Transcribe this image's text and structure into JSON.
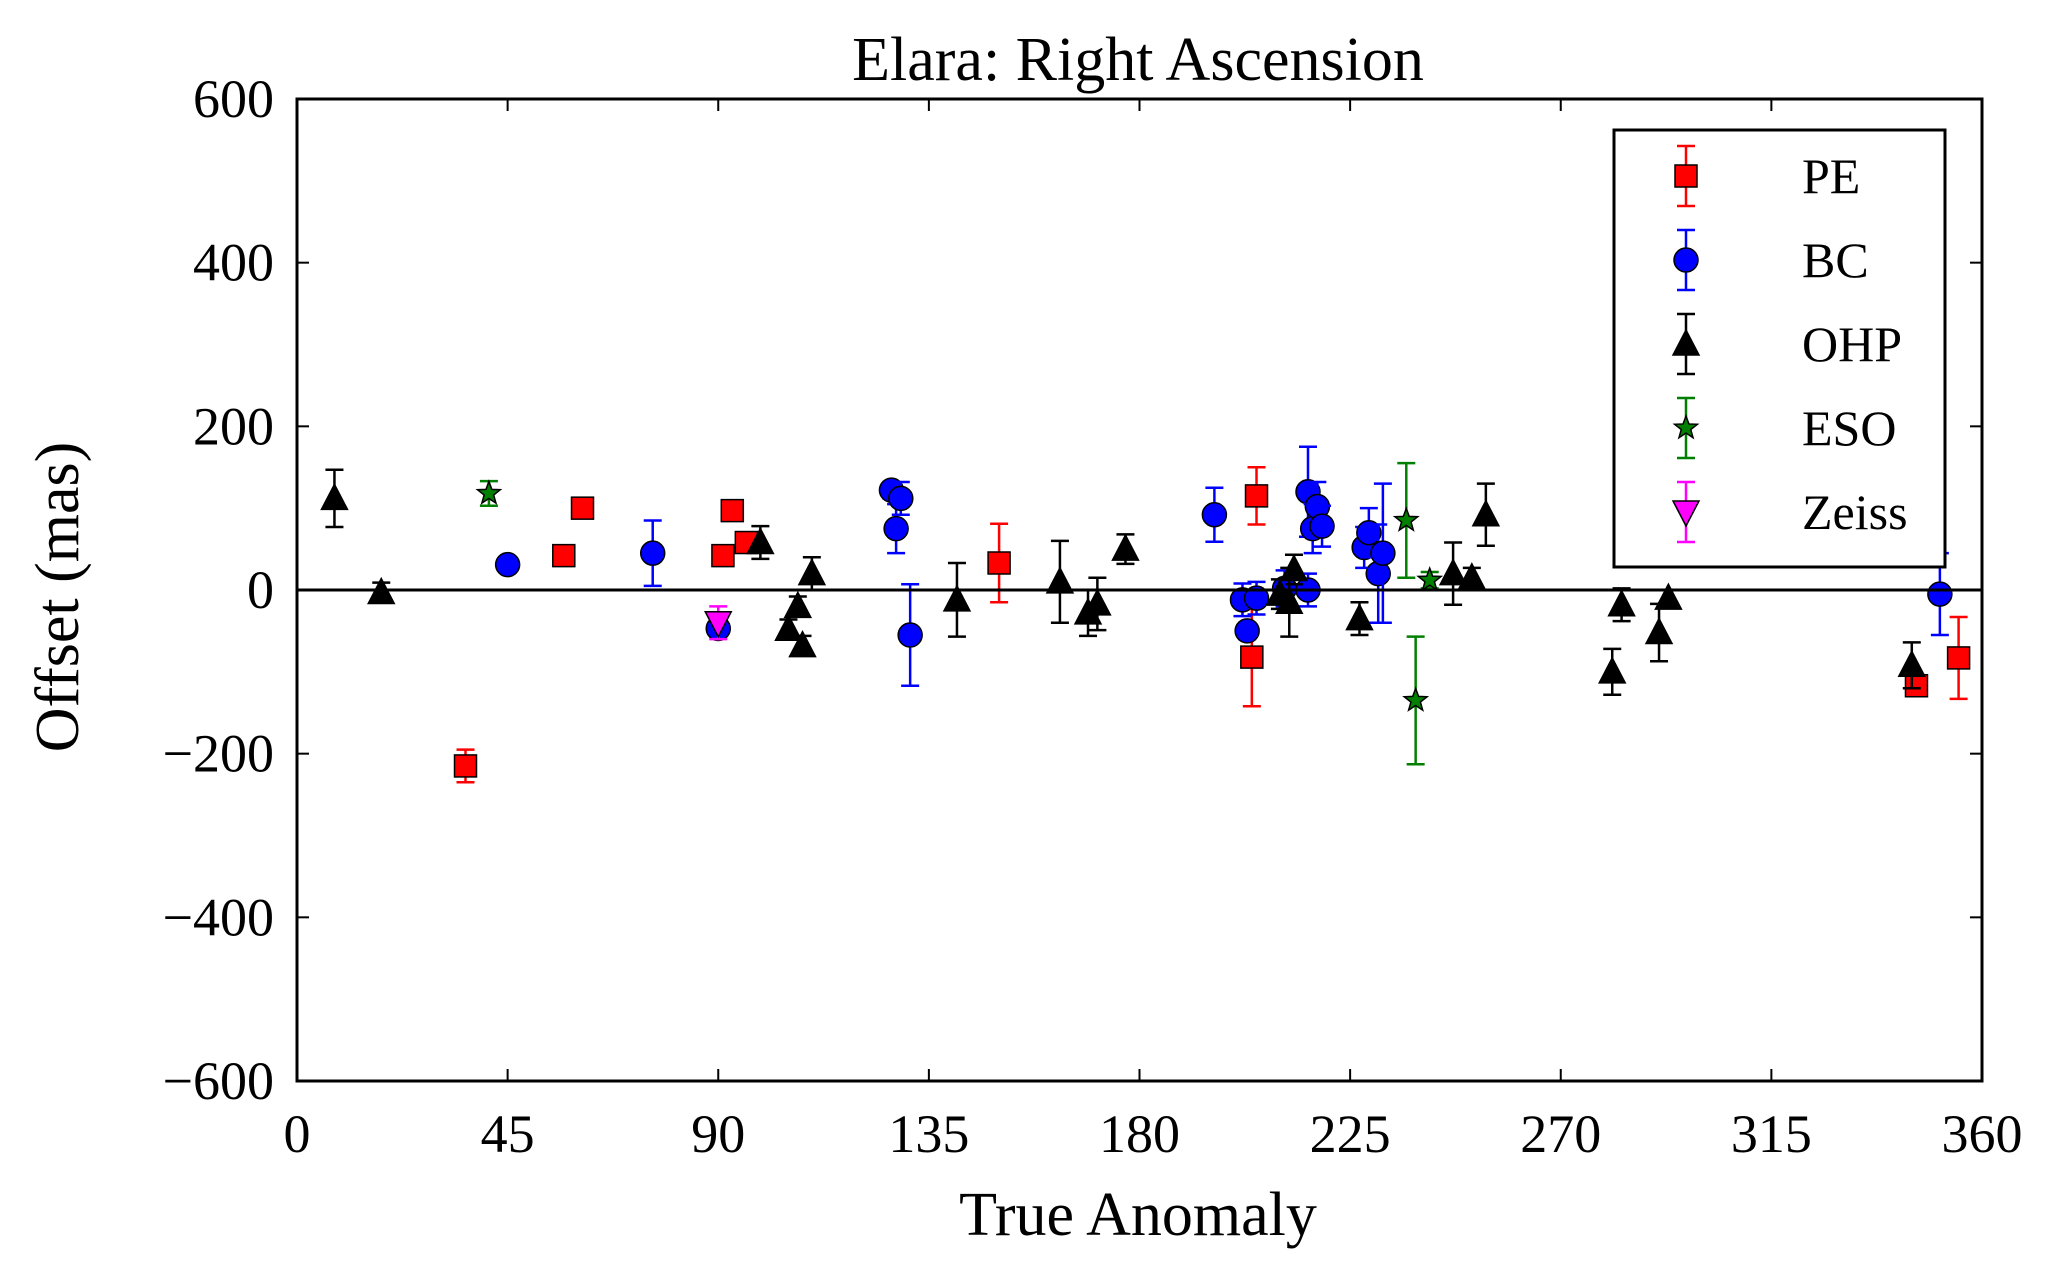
{
  "chart_data": {
    "type": "scatter",
    "title": "Elara: Right Ascension",
    "xlabel": "True Anomaly",
    "ylabel": "Offset (mas)",
    "xlim": [
      0,
      360
    ],
    "ylim": [
      -600,
      600
    ],
    "xticks": [
      0,
      45,
      90,
      135,
      180,
      225,
      270,
      315,
      360
    ],
    "yticks": [
      600,
      400,
      200,
      0,
      -200,
      -400,
      -600
    ],
    "xtick_labels": [
      "0",
      "45",
      "90",
      "135",
      "180",
      "225",
      "270",
      "315",
      "360"
    ],
    "ytick_labels": [
      "600",
      "400",
      "200",
      "0",
      "−200",
      "−400",
      "−600"
    ],
    "zero_line": 0,
    "grid": false,
    "legend_position": "top-right",
    "series": [
      {
        "name": "PE",
        "marker": "square",
        "color": "#ff0000",
        "errcolor": "#ff0000",
        "points": [
          {
            "x": 36,
            "y": -215,
            "err": 20
          },
          {
            "x": 57,
            "y": 42,
            "err": 5
          },
          {
            "x": 61,
            "y": 100,
            "err": 5
          },
          {
            "x": 91,
            "y": 42,
            "err": 5
          },
          {
            "x": 93,
            "y": 97,
            "err": 5
          },
          {
            "x": 96,
            "y": 58,
            "err": 5
          },
          {
            "x": 150,
            "y": 33,
            "err": 48
          },
          {
            "x": 204,
            "y": -82,
            "err": 60
          },
          {
            "x": 205,
            "y": 115,
            "err": 35
          },
          {
            "x": 346,
            "y": -117,
            "err": 8
          },
          {
            "x": 355,
            "y": -83,
            "err": 50
          }
        ]
      },
      {
        "name": "BC",
        "marker": "circle",
        "color": "#0000ff",
        "errcolor": "#0000ff",
        "points": [
          {
            "x": 45,
            "y": 31,
            "err": 8
          },
          {
            "x": 76,
            "y": 45,
            "err": 40
          },
          {
            "x": 90,
            "y": -47,
            "err": 10
          },
          {
            "x": 127,
            "y": 122,
            "err": 10
          },
          {
            "x": 128,
            "y": 75,
            "err": 30
          },
          {
            "x": 129,
            "y": 112,
            "err": 20
          },
          {
            "x": 131,
            "y": -55,
            "err": 62
          },
          {
            "x": 196,
            "y": 92,
            "err": 33
          },
          {
            "x": 202,
            "y": -12,
            "err": 20
          },
          {
            "x": 203,
            "y": -50,
            "err": 10
          },
          {
            "x": 205,
            "y": -10,
            "err": 20
          },
          {
            "x": 211,
            "y": 2,
            "err": 22
          },
          {
            "x": 216,
            "y": 120,
            "err": 55
          },
          {
            "x": 216,
            "y": 0,
            "err": 20
          },
          {
            "x": 217,
            "y": 75,
            "err": 30
          },
          {
            "x": 218,
            "y": 102,
            "err": 30
          },
          {
            "x": 219,
            "y": 78,
            "err": 25
          },
          {
            "x": 228,
            "y": 52,
            "err": 25
          },
          {
            "x": 229,
            "y": 70,
            "err": 30
          },
          {
            "x": 231,
            "y": 20,
            "err": 60
          },
          {
            "x": 232,
            "y": 45,
            "err": 85
          },
          {
            "x": 351,
            "y": -5,
            "err": 50
          }
        ]
      },
      {
        "name": "OHP",
        "marker": "triangle",
        "color": "#000000",
        "errcolor": "#000000",
        "points": [
          {
            "x": 8,
            "y": 112,
            "err": 35
          },
          {
            "x": 18,
            "y": -3,
            "err": 12
          },
          {
            "x": 99,
            "y": 58,
            "err": 20
          },
          {
            "x": 105,
            "y": -48,
            "err": 12
          },
          {
            "x": 107,
            "y": -20,
            "err": 12
          },
          {
            "x": 108,
            "y": -68,
            "err": 12
          },
          {
            "x": 110,
            "y": 20,
            "err": 20
          },
          {
            "x": 141,
            "y": -12,
            "err": 45
          },
          {
            "x": 163,
            "y": 10,
            "err": 50
          },
          {
            "x": 169,
            "y": -28,
            "err": 28
          },
          {
            "x": 171,
            "y": -17,
            "err": 32
          },
          {
            "x": 177,
            "y": 50,
            "err": 18
          },
          {
            "x": 210,
            "y": -5,
            "err": 18
          },
          {
            "x": 212,
            "y": -15,
            "err": 42
          },
          {
            "x": 213,
            "y": 25,
            "err": 18
          },
          {
            "x": 227,
            "y": -35,
            "err": 20
          },
          {
            "x": 247,
            "y": 20,
            "err": 38
          },
          {
            "x": 251,
            "y": 15,
            "err": 12
          },
          {
            "x": 254,
            "y": 92,
            "err": 38
          },
          {
            "x": 281,
            "y": -100,
            "err": 28
          },
          {
            "x": 283,
            "y": -18,
            "err": 20
          },
          {
            "x": 291,
            "y": -52,
            "err": 35
          },
          {
            "x": 293,
            "y": -10,
            "err": 10
          },
          {
            "x": 345,
            "y": -92,
            "err": 28
          }
        ]
      },
      {
        "name": "ESO",
        "marker": "star",
        "color": "#007f00",
        "errcolor": "#007f00",
        "points": [
          {
            "x": 41,
            "y": 118,
            "err": 15
          },
          {
            "x": 237,
            "y": 85,
            "err": 70
          },
          {
            "x": 239,
            "y": -135,
            "err": 78
          },
          {
            "x": 242,
            "y": 12,
            "err": 10
          }
        ]
      },
      {
        "name": "Zeiss",
        "marker": "triangle-down",
        "color": "#ff00ff",
        "errcolor": "#ff00ff",
        "points": [
          {
            "x": 90,
            "y": -40,
            "err": 20
          }
        ]
      }
    ]
  }
}
